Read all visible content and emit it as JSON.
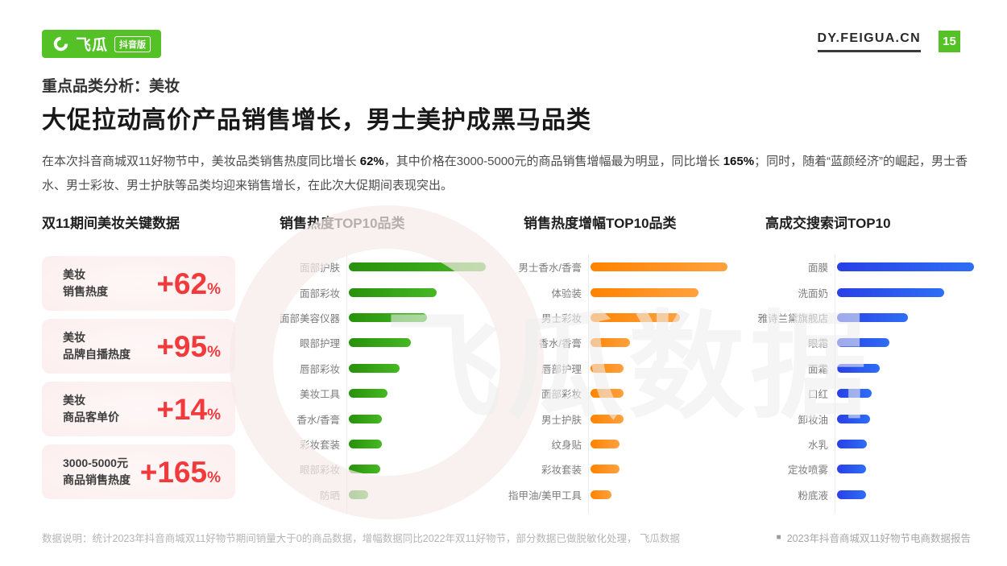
{
  "header": {
    "logo_brand": "飞瓜",
    "logo_edition": "抖音版",
    "site": "DY.FEIGUA.CN",
    "page_number": "15"
  },
  "title": {
    "kicker": "重点品类分析：美妆",
    "main": "大促拉动高价产品销售增长，男士美护成黑马品类"
  },
  "intro": {
    "part1": "在本次抖音商城双11好物节中，美妆品类销售热度同比增长 ",
    "bold1": "62%",
    "part2": "，其中价格在3000-5000元的商品销售增幅最为明显，同比增长 ",
    "bold2": "165%",
    "part3": "；同时，随着“蓝颜经济”的崛起，男士香水、男士彩妆、男士护肤等品类均迎来销售增长，在此次大促期间表现突出。"
  },
  "key_data": {
    "title": "双11期间美妆关键数据",
    "accent_color": "#f23a3c",
    "cards": [
      {
        "label_line1": "美妆",
        "label_line2": "销售热度",
        "value": "+62",
        "unit": "%"
      },
      {
        "label_line1": "美妆",
        "label_line2": "品牌自播热度",
        "value": "+95",
        "unit": "%"
      },
      {
        "label_line1": "美妆",
        "label_line2": "商品客单价",
        "value": "+14",
        "unit": "%"
      },
      {
        "label_line1": "3000-5000元",
        "label_line2": "商品销售热度",
        "value": "+165",
        "unit": "%"
      }
    ]
  },
  "chart_data": [
    {
      "type": "bar",
      "orientation": "horizontal",
      "title": "销售热度TOP10品类",
      "categories": [
        "面部护肤",
        "面部彩妆",
        "面部美容仪器",
        "眼部护理",
        "唇部彩妆",
        "美妆工具",
        "香水/香膏",
        "彩妆套装",
        "眼部彩妆",
        "防晒"
      ],
      "values": [
        100,
        64,
        57,
        45,
        37,
        28,
        24,
        24,
        23,
        14
      ],
      "values_scale": "relative index, max bar = 100 (no numeric axis shown)",
      "bar_color_from": "#28910b",
      "bar_color_to": "#44b822"
    },
    {
      "type": "bar",
      "orientation": "horizontal",
      "title": "销售热度增幅TOP10品类",
      "categories": [
        "男士香水/香膏",
        "体验装",
        "男士彩妆",
        "香水/香膏",
        "唇部护理",
        "面部彩妆",
        "男士护肤",
        "纹身贴",
        "彩妆套装",
        "指甲油/美甲工具"
      ],
      "values": [
        100,
        79,
        65,
        29,
        24,
        24,
        24,
        21,
        21,
        15
      ],
      "values_scale": "relative index, max bar = 100 (no numeric axis shown)",
      "bar_color_from": "#ff8300",
      "bar_color_to": "#ffa13f"
    },
    {
      "type": "bar",
      "orientation": "horizontal",
      "title": "高成交搜索词TOP10",
      "categories": [
        "面膜",
        "洗面奶",
        "雅诗兰黛旗舰店",
        "眼霜",
        "面霜",
        "口红",
        "卸妆油",
        "水乳",
        "定妆喷雾",
        "粉底液"
      ],
      "values": [
        100,
        78,
        52,
        38,
        31,
        25,
        24,
        22,
        21,
        21
      ],
      "values_scale": "relative index, max bar = 100 (no numeric axis shown)",
      "bar_color_from": "#2940e6",
      "bar_color_to": "#2e6ef5"
    }
  ],
  "watermark": {
    "text": "飞瓜数据"
  },
  "footer": {
    "note": "数据说明：统计2023年抖音商城双11好物节期间销量大于0的商品数据，增幅数据同比2022年双11好物节，部分数据已做脱敏化处理， 飞瓜数据",
    "source": "2023年抖音商城双11好物节电商数据报告"
  }
}
